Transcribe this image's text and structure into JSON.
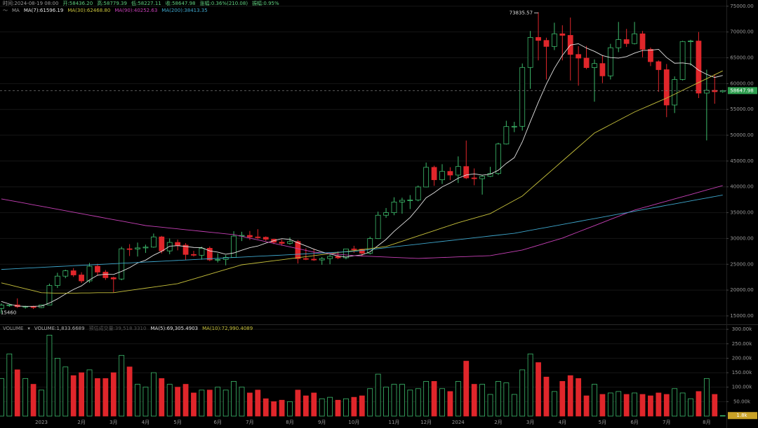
{
  "chart_data": [
    {
      "type": "candlestick",
      "header": [
        "时间:2024-08-19 08:00",
        "开:58436.20",
        "高:58779.39",
        "低:58227.11",
        "收:58647.98",
        "涨幅:0.36%(210.08)",
        "振幅:0.95%"
      ],
      "legend_title": "MA",
      "categories": [
        null,
        null,
        null,
        null,
        null,
        "2023",
        null,
        null,
        null,
        null,
        "2月",
        null,
        null,
        null,
        "3月",
        null,
        null,
        null,
        "4月",
        null,
        null,
        null,
        "5月",
        null,
        null,
        null,
        null,
        "6月",
        null,
        null,
        null,
        "7月",
        null,
        null,
        null,
        null,
        "8月",
        null,
        null,
        null,
        "9月",
        null,
        null,
        null,
        "10月",
        null,
        null,
        null,
        null,
        "11月",
        null,
        null,
        null,
        "12月",
        null,
        null,
        null,
        "2024",
        null,
        null,
        null,
        null,
        "2月",
        null,
        null,
        null,
        "3月",
        null,
        null,
        null,
        "4月",
        null,
        null,
        null,
        null,
        "5月",
        null,
        null,
        null,
        "6月",
        null,
        null,
        null,
        "7月",
        null,
        null,
        null,
        null,
        "8月",
        null,
        null
      ],
      "open": [
        16450,
        17100,
        17130,
        16780,
        16840,
        16620,
        17120,
        20880,
        22700,
        23740,
        22930,
        21780,
        24620,
        23490,
        22400,
        22150,
        28000,
        27970,
        28170,
        28320,
        30300,
        27590,
        29230,
        28700,
        26900,
        26750,
        28100,
        25850,
        25930,
        26340,
        30460,
        30590,
        30290,
        30230,
        29850,
        29280,
        29050,
        29400,
        26100,
        25990,
        25830,
        26100,
        26530,
        26250,
        27970,
        27920,
        27150,
        29970,
        34500,
        35000,
        37060,
        37390,
        37450,
        39970,
        43780,
        41370,
        42990,
        42280,
        43940,
        41730,
        41580,
        42030,
        42580,
        48300,
        51680,
        51730,
        63130,
        68950,
        68370,
        67200,
        69650,
        69350,
        65650,
        64940,
        63100,
        63890,
        61500,
        66950,
        68530,
        67760,
        69650,
        66650,
        64250,
        62700,
        55850,
        60800,
        68150,
        68250,
        58160,
        58700,
        58436.2
      ],
      "high": [
        17420,
        17300,
        18390,
        16960,
        16970,
        17200,
        21250,
        23350,
        23950,
        24250,
        23450,
        25250,
        25100,
        23880,
        22600,
        28400,
        28900,
        29200,
        28800,
        30950,
        30500,
        30000,
        29800,
        29100,
        27600,
        28400,
        28440,
        27100,
        26800,
        31400,
        31300,
        31450,
        31800,
        30400,
        29950,
        29800,
        30200,
        29700,
        28100,
        28000,
        26400,
        26900,
        27500,
        28000,
        28580,
        28000,
        30350,
        35200,
        35900,
        37980,
        37900,
        38400,
        40250,
        44700,
        44100,
        44400,
        43800,
        45900,
        48970,
        43570,
        42200,
        43880,
        48550,
        52800,
        52600,
        63900,
        70200,
        73835.57,
        68900,
        71800,
        71300,
        72800,
        67250,
        67300,
        64700,
        65500,
        67700,
        71950,
        70600,
        71950,
        70200,
        66990,
        64500,
        63800,
        61400,
        68300,
        68500,
        70000,
        62700,
        61800,
        58779.39
      ],
      "low": [
        15460,
        16750,
        16530,
        16400,
        16330,
        16500,
        17100,
        20400,
        22300,
        22550,
        21380,
        21400,
        22750,
        21970,
        19570,
        21900,
        26600,
        26500,
        27200,
        28200,
        27100,
        26950,
        27700,
        25800,
        26500,
        25900,
        25600,
        25350,
        24800,
        26250,
        29500,
        29700,
        29900,
        29500,
        28900,
        28600,
        28800,
        25150,
        25800,
        25650,
        24900,
        25000,
        26000,
        25960,
        27200,
        26500,
        26900,
        29900,
        34000,
        34500,
        34800,
        35700,
        37200,
        39900,
        40200,
        40550,
        41300,
        40750,
        41500,
        40300,
        38500,
        41900,
        42300,
        48200,
        50600,
        50900,
        59000,
        64500,
        60800,
        66500,
        64500,
        60600,
        59600,
        62800,
        56500,
        60100,
        60800,
        66100,
        67100,
        67600,
        65100,
        63400,
        58400,
        53500,
        54300,
        60600,
        63500,
        57200,
        49000,
        56100,
        58227.11
      ],
      "close": [
        17100,
        17130,
        16780,
        16840,
        16620,
        17120,
        20880,
        22700,
        23740,
        22930,
        21780,
        24620,
        23490,
        22400,
        22150,
        28000,
        27970,
        28170,
        28320,
        30300,
        27590,
        29230,
        28700,
        26900,
        26750,
        28100,
        25850,
        25930,
        26340,
        30460,
        30590,
        30290,
        30230,
        29850,
        29280,
        29050,
        29400,
        26100,
        25990,
        25830,
        26100,
        26530,
        26250,
        27970,
        27920,
        27150,
        29970,
        34500,
        35000,
        37060,
        37390,
        37450,
        39970,
        43780,
        41370,
        42990,
        42280,
        43940,
        41730,
        41580,
        42030,
        42580,
        48300,
        51680,
        51730,
        63130,
        68950,
        68370,
        67200,
        69650,
        69350,
        65650,
        64940,
        63100,
        63890,
        61500,
        66950,
        68530,
        67760,
        69650,
        66650,
        64250,
        62700,
        55850,
        60800,
        68150,
        68250,
        58160,
        58700,
        58430,
        58647.98
      ],
      "series": [
        {
          "name": "MA(7):61596.19",
          "color": "#e4e4e4",
          "values": [
            17800,
            17300,
            16900,
            16850,
            16850,
            16900,
            17490,
            18290,
            19240,
            20120,
            20820,
            21970,
            22880,
            23090,
            23020,
            23620,
            24340,
            25260,
            25790,
            26760,
            27500,
            28510,
            28610,
            28460,
            28260,
            28220,
            27590,
            27350,
            26940,
            27190,
            27720,
            28220,
            28530,
            29100,
            29580,
            29960,
            29810,
            29170,
            28560,
            27930,
            27390,
            27000,
            26600,
            26400,
            26660,
            26820,
            27410,
            28610,
            29820,
            31370,
            32710,
            34070,
            35910,
            37880,
            38860,
            40000,
            40750,
            41680,
            42290,
            42520,
            42270,
            42450,
            43210,
            44550,
            45660,
            48720,
            52630,
            56390,
            59910,
            62960,
            65480,
            67470,
            67730,
            66890,
            66250,
            65440,
            65050,
            64940,
            65240,
            65910,
            66420,
            66470,
            66640,
            65060,
            63950,
            64010,
            63810,
            62590,
            61800,
            61190,
            61590
          ]
        },
        {
          "name": "MA(30):62468.80",
          "color": "#c8c23c",
          "values": [
            21400,
            21020,
            20640,
            20260,
            19880,
            19500,
            19450,
            19400,
            19400,
            19400,
            19450,
            19450,
            19500,
            19500,
            19500,
            19720,
            19940,
            20160,
            20370,
            20590,
            20810,
            21030,
            21250,
            21710,
            22160,
            22620,
            23080,
            23530,
            23990,
            24440,
            24900,
            25100,
            25290,
            25490,
            25690,
            25880,
            26080,
            26280,
            26470,
            26670,
            26870,
            27060,
            27260,
            27460,
            27650,
            27850,
            28050,
            28240,
            28440,
            28950,
            29460,
            29980,
            30490,
            31000,
            31510,
            32030,
            32540,
            33050,
            33490,
            33940,
            34380,
            34820,
            35670,
            36520,
            37370,
            38220,
            39580,
            40930,
            42290,
            43640,
            45000,
            46360,
            47720,
            49070,
            50430,
            51240,
            52060,
            52870,
            53690,
            54500,
            55180,
            55850,
            56530,
            57200,
            57950,
            58710,
            59460,
            60210,
            60960,
            61720,
            62470
          ]
        },
        {
          "name": "MA(90):40252.63",
          "color": "#c640b6",
          "values": [
            37670,
            37380,
            37100,
            36810,
            36520,
            36240,
            35950,
            35660,
            35370,
            35090,
            34800,
            34510,
            34230,
            33940,
            33650,
            33370,
            33080,
            32790,
            32500,
            32340,
            32180,
            32020,
            31860,
            31700,
            31540,
            31380,
            31220,
            31060,
            30900,
            30740,
            30400,
            30060,
            29720,
            29380,
            29050,
            28710,
            28370,
            28030,
            27690,
            27350,
            27210,
            27080,
            26940,
            26810,
            26670,
            26600,
            26540,
            26470,
            26400,
            26330,
            26270,
            26200,
            26130,
            26190,
            26250,
            26310,
            26370,
            26430,
            26490,
            26550,
            26610,
            26670,
            26940,
            27220,
            27490,
            27760,
            28220,
            28680,
            29150,
            29610,
            30070,
            30670,
            31280,
            31880,
            32480,
            33090,
            33690,
            34290,
            34900,
            35500,
            35930,
            36360,
            36800,
            37230,
            37660,
            38090,
            38520,
            38950,
            39390,
            39820,
            40250
          ]
        },
        {
          "name": "MA(200):38413.35",
          "color": "#3ea6cc",
          "values": [
            24000,
            24080,
            24160,
            24240,
            24320,
            24400,
            24480,
            24560,
            24640,
            24720,
            24800,
            24870,
            24950,
            25030,
            25110,
            25190,
            25270,
            25350,
            25430,
            25510,
            25590,
            25670,
            25750,
            25830,
            25910,
            25990,
            26070,
            26150,
            26230,
            26310,
            26390,
            26470,
            26550,
            26620,
            26700,
            26780,
            26860,
            26940,
            27020,
            27100,
            27180,
            27260,
            27340,
            27420,
            27500,
            27680,
            27850,
            28030,
            28200,
            28380,
            28550,
            28730,
            28900,
            29080,
            29250,
            29430,
            29600,
            29780,
            29950,
            30130,
            30300,
            30480,
            30650,
            30830,
            31000,
            31290,
            31570,
            31860,
            32140,
            32430,
            32710,
            33000,
            33280,
            33570,
            33850,
            34140,
            34420,
            34710,
            34990,
            35280,
            35560,
            35850,
            36130,
            36420,
            36700,
            36990,
            37270,
            37560,
            37840,
            38130,
            38410
          ]
        }
      ],
      "up_color": "#3dbb6c",
      "down_color": "#e0262b",
      "ylim": [
        13500,
        76200
      ],
      "yticks": [
        {
          "value": 15000,
          "label": "15000.00"
        },
        {
          "value": 20000,
          "label": "20000.00"
        },
        {
          "value": 25000,
          "label": "25000.00"
        },
        {
          "value": 30000,
          "label": "30000.00"
        },
        {
          "value": 35000,
          "label": "35000.00"
        },
        {
          "value": 40000,
          "label": "40000.00"
        },
        {
          "value": 45000,
          "label": "45000.00"
        },
        {
          "value": 50000,
          "label": "50000.00"
        },
        {
          "value": 55000,
          "label": "55000.00"
        },
        {
          "value": 60000,
          "label": "60000.00"
        },
        {
          "value": 65000,
          "label": "65000.00"
        },
        {
          "value": 70000,
          "label": "70000.00"
        },
        {
          "value": 75000,
          "label": "75000.00"
        }
      ],
      "grid": true
    },
    {
      "type": "bar",
      "header": [
        "VOLUME",
        "VOLUME:1,833.6689",
        "预估成交量:39,518.3310",
        "MA(5):69,305.4903",
        "MA(10):72,990.4089"
      ],
      "values": [
        130000,
        215000,
        160000,
        130000,
        110000,
        90000,
        280000,
        200000,
        170000,
        140000,
        150000,
        160000,
        130000,
        130000,
        150000,
        210000,
        170000,
        110000,
        100000,
        150000,
        130000,
        110000,
        100000,
        110000,
        80000,
        90000,
        90000,
        100000,
        90000,
        120000,
        100000,
        80000,
        90000,
        60000,
        50000,
        55000,
        50000,
        90000,
        70000,
        80000,
        60000,
        65000,
        55000,
        60000,
        65000,
        70000,
        95000,
        145000,
        100000,
        110000,
        110000,
        90000,
        95000,
        120000,
        120000,
        95000,
        85000,
        120000,
        190000,
        110000,
        110000,
        75000,
        120000,
        115000,
        75000,
        160000,
        215000,
        185000,
        135000,
        85000,
        120000,
        140000,
        130000,
        70000,
        110000,
        75000,
        80000,
        85000,
        75000,
        80000,
        75000,
        70000,
        80000,
        75000,
        95000,
        80000,
        60000,
        85000,
        130000,
        75000,
        1833.6689
      ],
      "value_labels": [
        null,
        null,
        null,
        null,
        null,
        null,
        null,
        null,
        null,
        null,
        null,
        null,
        null,
        null,
        null,
        null,
        null,
        null,
        null,
        null,
        null,
        null,
        null,
        null,
        null,
        null,
        null,
        null,
        null,
        null,
        null,
        null,
        null,
        null,
        null,
        null,
        null,
        null,
        null,
        null,
        null,
        null,
        null,
        null,
        null,
        null,
        null,
        null,
        null,
        null,
        null,
        null,
        null,
        null,
        null,
        null,
        null,
        null,
        null,
        null,
        null,
        null,
        null,
        null,
        null,
        null,
        null,
        null,
        null,
        null,
        null,
        null,
        null,
        null,
        null,
        null,
        null,
        null,
        null,
        null,
        null,
        null,
        null,
        null,
        null,
        null,
        null,
        null,
        null,
        null,
        "1.8k"
      ],
      "ylim": [
        0,
        310000
      ],
      "yticks": [
        {
          "value": 50000,
          "label": "50.00k"
        },
        {
          "value": 100000,
          "label": "100.00k"
        },
        {
          "value": 150000,
          "label": "150.00k"
        },
        {
          "value": 200000,
          "label": "200.00k"
        },
        {
          "value": 250000,
          "label": "250.00k"
        },
        {
          "value": 300000,
          "label": "300.00k"
        }
      ],
      "grid": true
    }
  ]
}
